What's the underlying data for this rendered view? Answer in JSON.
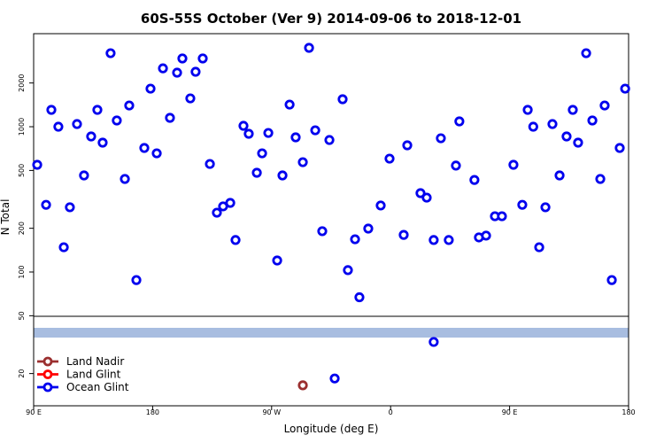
{
  "chart_data": {
    "type": "scatter",
    "title": "60S-55S October (Ver 9)   2014-09-06 to 2018-12-01",
    "x_label": "Longitude (deg E)",
    "y_label": "N Total",
    "log_y": true,
    "xlim": [
      90,
      540
    ],
    "ylim": [
      12,
      4370
    ],
    "xticks": [
      {
        "value": 90,
        "label": "90 E"
      },
      180,
      {
        "value": 270,
        "label": "90 W"
      },
      {
        "value": 360,
        "label": "0"
      },
      {
        "value": 450,
        "label": "90 E"
      },
      {
        "value": 540,
        "label": "180"
      }
    ],
    "yticks": [
      20,
      50,
      100,
      200,
      500,
      1000,
      2000
    ],
    "legend": "bottom-left",
    "series": [
      {
        "name": "Land Nadir",
        "color": "#9b2f2f",
        "x": [
          293.6
        ],
        "values": [
          16.6
        ]
      },
      {
        "name": "Land Glint",
        "color": "#ff0000",
        "x": [],
        "values": []
      },
      {
        "name": "Ocean Glint",
        "color": "#0000ee",
        "x": [
          92.7,
          99.4,
          103.4,
          108.7,
          112.8,
          117.4,
          122.8,
          128.1,
          133.5,
          138.2,
          142.2,
          148.2,
          152.9,
          159,
          162.3,
          167.7,
          173.7,
          178.4,
          183.1,
          187.8,
          193.1,
          198.5,
          202.5,
          208.5,
          212.5,
          217.9,
          223.3,
          228.6,
          233.3,
          238.7,
          242.7,
          248.7,
          252.7,
          258.8,
          262.8,
          267.5,
          274.2,
          278.2,
          283.6,
          288.2,
          293.6,
          298.3,
          303,
          308.3,
          313.7,
          323.7,
          327.7,
          333.1,
          336.4,
          343.1,
          352.5,
          359.2,
          369.9,
          372.6,
          382.6,
          387.3,
          392.6,
          398,
          404,
          409.4,
          412,
          423.4,
          426.8,
          432.2,
          438.9,
          444.2,
          452.9,
          459.6,
          463.7,
          467.9,
          472.4,
          477.1,
          482.4,
          487.8,
          493.1,
          497.8,
          501.8,
          507.9,
          512.6,
          518.6,
          521.9,
          527.3,
          533.3,
          537.4,
          392.6,
          317.7
        ],
        "values": [
          547,
          290,
          1306,
          1000,
          148,
          279,
          1043,
          462,
          857,
          1306,
          777,
          3206,
          1104,
          437,
          1400,
          88,
          714,
          1828,
          656,
          2522,
          1151,
          2355,
          2950,
          1567,
          2388,
          2950,
          554,
          256,
          283,
          299,
          166,
          1014,
          894,
          482,
          656,
          906,
          120,
          462,
          1420,
          845,
          570,
          3491,
          945,
          191,
          810,
          1546,
          103,
          168,
          67,
          199,
          287,
          603,
          180,
          745,
          349,
          325,
          166,
          833,
          166,
          540,
          1088,
          430,
          173,
          178,
          242,
          242,
          547,
          290,
          1306,
          1000,
          148,
          279,
          1043,
          462,
          857,
          1306,
          777,
          3206,
          1104,
          437,
          1400,
          88,
          714,
          1828,
          33,
          18.5
        ]
      }
    ]
  }
}
